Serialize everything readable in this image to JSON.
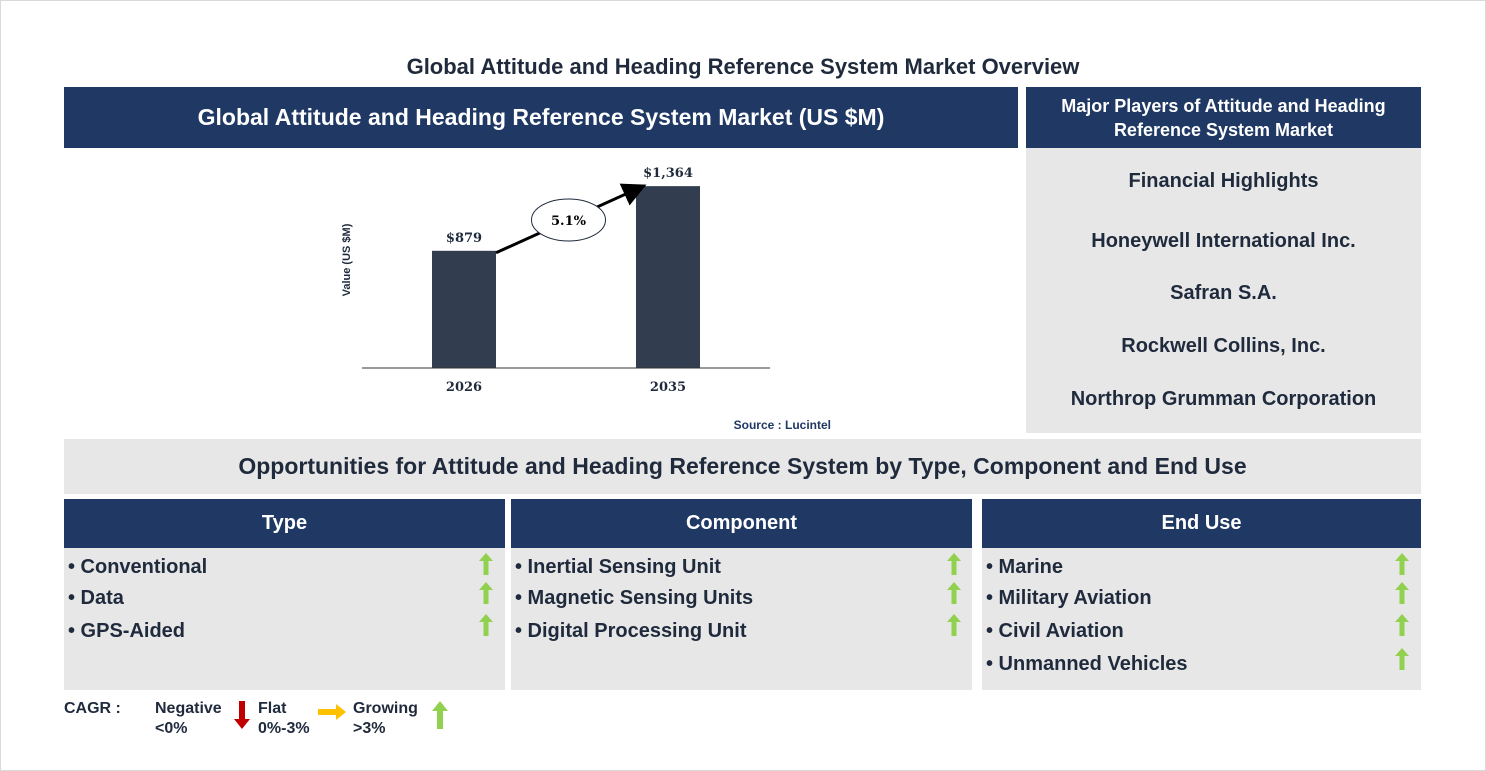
{
  "page_title": "Global Attitude and Heading Reference System Market Overview",
  "chart_banner": "Global Attitude and Heading Reference System Market (US $M)",
  "players_banner": "Major Players of Attitude and Heading Reference System Market",
  "players": [
    "Financial Highlights",
    "Honeywell International Inc.",
    "Safran S.A.",
    "Rockwell Collins, Inc.",
    "Northrop Grumman Corporation"
  ],
  "chart_data": {
    "type": "bar",
    "categories": [
      "2026",
      "2035"
    ],
    "values": [
      879,
      1364
    ],
    "value_labels": [
      "$879",
      "$1,364"
    ],
    "ylabel": "Value (US $M)",
    "ylim": [
      0,
      1500
    ],
    "cagr_label": "5.1%",
    "bar_color": "#323e4f",
    "source": "Source : Lucintel",
    "grid": false
  },
  "opportunities_title": "Opportunities for Attitude and Heading Reference System by Type, Component and End Use",
  "columns": [
    {
      "title": "Type",
      "items": [
        "• Conventional",
        "• Data",
        "• GPS-Aided"
      ]
    },
    {
      "title": "Component",
      "items": [
        "• Inertial Sensing Unit",
        "• Magnetic Sensing Units",
        "• Digital Processing Unit"
      ]
    },
    {
      "title": "End Use",
      "items": [
        "• Marine",
        "• Military Aviation",
        "• Civil Aviation",
        "• Unmanned Vehicles"
      ]
    }
  ],
  "item_trend_icon": "green-up-arrow-icon",
  "legend": {
    "cagr": "CAGR :",
    "negative": [
      "Negative",
      "<0%"
    ],
    "flat": [
      "Flat",
      "0%-3%"
    ],
    "growing": [
      "Growing",
      ">3%"
    ]
  },
  "colors": {
    "navy": "#1f3864",
    "panel_gray": "#e7e7e7",
    "up_green": "#92d050",
    "down_red": "#c00000",
    "flat_orange": "#ffc000"
  }
}
